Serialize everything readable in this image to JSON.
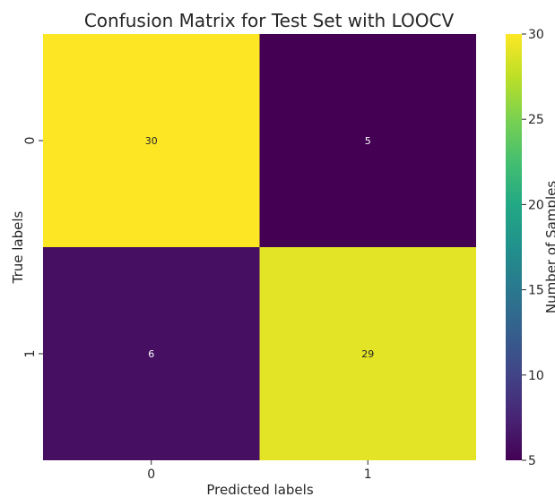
{
  "chart_data": {
    "type": "heatmap",
    "title": "Confusion Matrix for Test Set with LOOCV",
    "xlabel": "Predicted labels",
    "ylabel": "True labels",
    "x_categories": [
      "0",
      "1"
    ],
    "y_categories": [
      "0",
      "1"
    ],
    "matrix": [
      [
        30,
        5
      ],
      [
        6,
        29
      ]
    ],
    "colormap": "viridis",
    "colorbar": {
      "label": "Number of Samples",
      "range": [
        5,
        30
      ],
      "ticks": [
        5,
        10,
        15,
        20,
        25,
        30
      ]
    },
    "colors": {
      "low": "#440154",
      "high": "#fde725"
    }
  }
}
